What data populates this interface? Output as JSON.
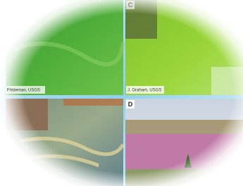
{
  "panel_labels": [
    "C",
    "D"
  ],
  "credits": [
    "Fristeman, USGS",
    "J. Graham, USGS"
  ]
}
